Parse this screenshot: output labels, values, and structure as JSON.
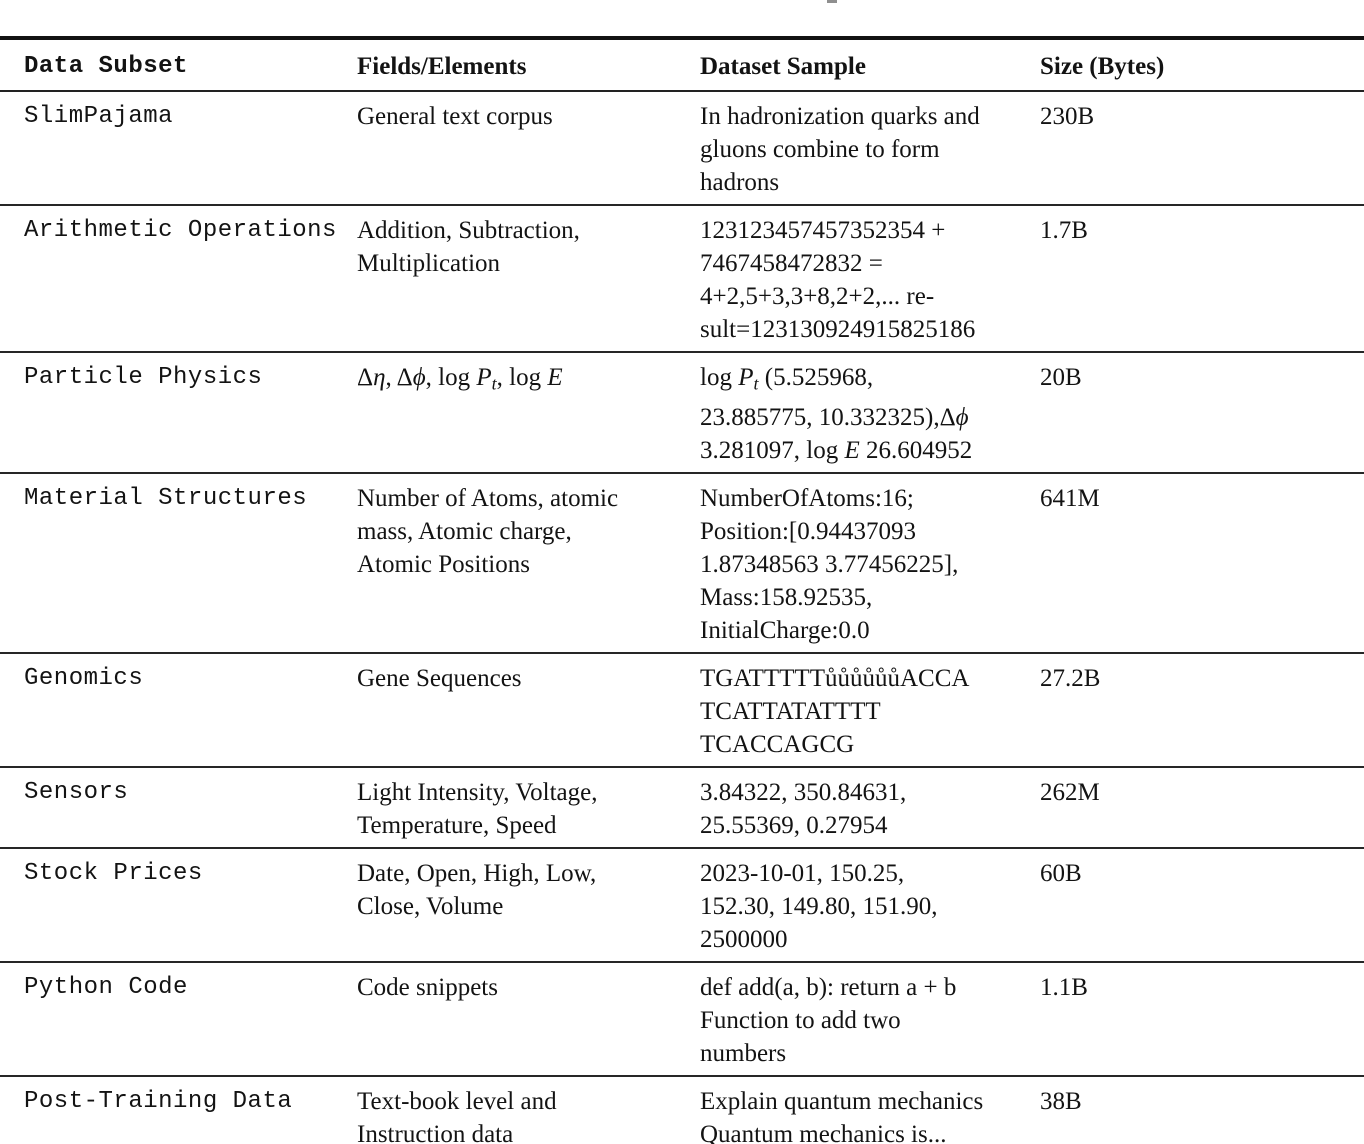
{
  "page": {
    "background": "#ffffff",
    "text_color": "#131313",
    "rule_color": "#121212"
  },
  "table": {
    "columns": [
      {
        "label": "Data Subset"
      },
      {
        "label": "Fields/Elements"
      },
      {
        "label": "Dataset Sample"
      },
      {
        "label": "Size (Bytes)"
      }
    ],
    "rows": [
      {
        "subset": "SlimPajama",
        "fields": [
          "General text corpus"
        ],
        "sample": [
          "In hadronization quarks and",
          "gluons combine to form",
          "hadrons"
        ],
        "size": "230B"
      },
      {
        "subset": "Arithmetic Operations",
        "fields": [
          "Addition, Subtraction,",
          "Multiplication"
        ],
        "sample": [
          "123123457457352354 +",
          "7467458472832 =",
          "4+2,5+3,3+8,2+2,... re-",
          "sult=123130924915825186"
        ],
        "size": "1.7B"
      },
      {
        "subset": "Particle Physics",
        "fields": [
          [
            {
              "t": "Δ"
            },
            {
              "t": "η",
              "i": true
            },
            {
              "t": ", Δ"
            },
            {
              "t": "ϕ",
              "i": true
            },
            {
              "t": ", log "
            },
            {
              "t": "P",
              "i": true
            },
            {
              "t": "t",
              "i": true,
              "sub": true
            },
            {
              "t": ", log "
            },
            {
              "t": "E",
              "i": true
            }
          ]
        ],
        "sample": [
          [
            {
              "t": "log "
            },
            {
              "t": "P",
              "i": true
            },
            {
              "t": "t",
              "i": true,
              "sub": true
            },
            {
              "t": " (5.525968,"
            }
          ],
          [
            {
              "t": "23.885775, 10.332325),Δ"
            },
            {
              "t": "ϕ",
              "i": true
            }
          ],
          [
            {
              "t": "3.281097, log "
            },
            {
              "t": "E",
              "i": true
            },
            {
              "t": " 26.604952"
            }
          ]
        ],
        "size": "20B"
      },
      {
        "subset": "Material Structures",
        "fields": [
          "Number of Atoms, atomic",
          "mass, Atomic charge,",
          "Atomic Positions"
        ],
        "sample": [
          "NumberOfAtoms:16;",
          "Position:[0.94437093",
          "1.87348563 3.77456225],",
          "Mass:158.92535,",
          "InitialCharge:0.0"
        ],
        "size": "641M"
      },
      {
        "subset": "Genomics",
        "fields": [
          "Gene Sequences"
        ],
        "sample": [
          "TGATTTTTůůůůůůACCA",
          "TCATTATATTTT",
          "TCACCAGCG"
        ],
        "size": "27.2B"
      },
      {
        "subset": "Sensors",
        "fields": [
          "Light Intensity, Voltage,",
          "Temperature, Speed"
        ],
        "sample": [
          "3.84322, 350.84631,",
          "25.55369, 0.27954"
        ],
        "size": "262M"
      },
      {
        "subset": "Stock Prices",
        "fields": [
          "Date, Open, High, Low,",
          "Close, Volume"
        ],
        "sample": [
          "2023-10-01, 150.25,",
          "152.30, 149.80, 151.90,",
          "2500000"
        ],
        "size": "60B"
      },
      {
        "subset": "Python Code",
        "fields": [
          "Code snippets"
        ],
        "sample": [
          "def add(a, b): return a + b",
          "Function to add two",
          "numbers"
        ],
        "size": "1.1B"
      },
      {
        "subset": "Post-Training Data",
        "fields": [
          "Text-book level and",
          "Instruction data"
        ],
        "sample": [
          "Explain quantum mechanics",
          "Quantum mechanics is..."
        ],
        "size": "38B"
      }
    ]
  }
}
